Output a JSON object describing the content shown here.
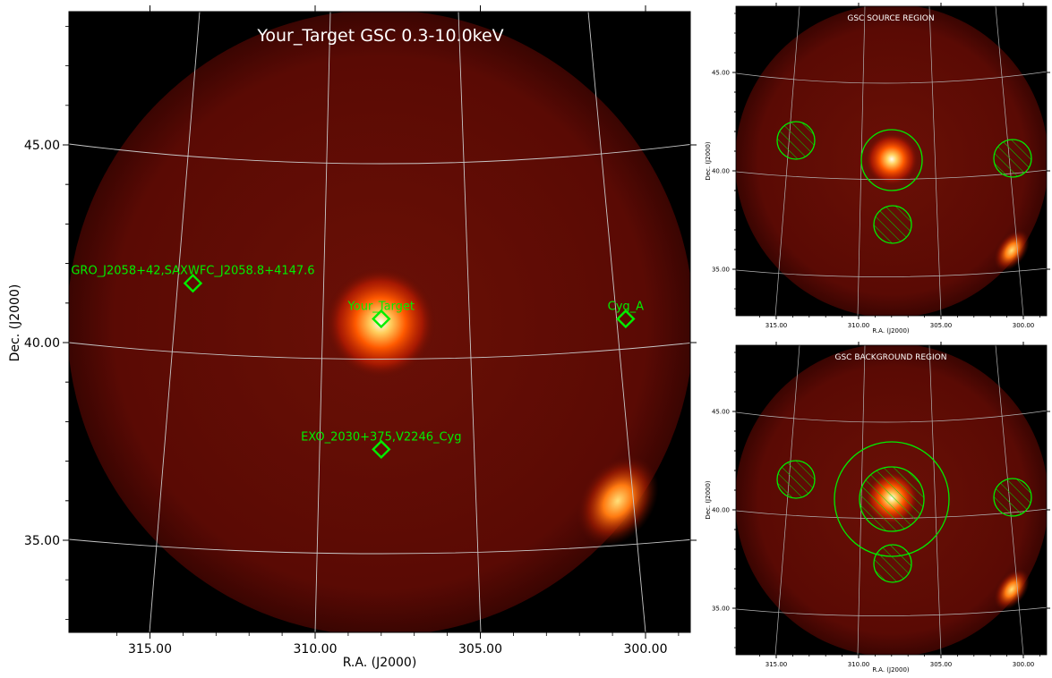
{
  "chart_data": [
    {
      "type": "heatmap",
      "title": "Your_Target GSC 0.3-10.0keV",
      "xlabel": "R.A. (J2000)",
      "ylabel": "Dec. (J2000)",
      "xticks": [
        "315.00",
        "310.00",
        "305.00",
        "300.00"
      ],
      "yticks": [
        "45.00",
        "40.00",
        "35.00"
      ],
      "colormap": "hot",
      "sources": [
        {
          "name": "GRO_J2058+42,SAXWFC_J2058.8+4147.6",
          "ra": 313.7,
          "dec": 41.5
        },
        {
          "name": "Your_Target",
          "ra": 308.0,
          "dec": 40.6
        },
        {
          "name": "Cyg_A",
          "ra": 300.6,
          "dec": 40.6
        },
        {
          "name": "EXO_2030+375,V2246_Cyg",
          "ra": 308.0,
          "dec": 37.3
        }
      ]
    },
    {
      "type": "heatmap",
      "title": "GSC SOURCE REGION",
      "xlabel": "R.A. (J2000)",
      "ylabel": "Dec. (J2000)",
      "xticks": [
        "315.00",
        "310.00",
        "305.00",
        "300.00"
      ],
      "yticks": [
        "45.00",
        "40.00",
        "35.00"
      ]
    },
    {
      "type": "heatmap",
      "title": "GSC BACKGROUND REGION",
      "xlabel": "R.A. (J2000)",
      "ylabel": "Dec. (J2000)",
      "xticks": [
        "315.00",
        "310.00",
        "305.00",
        "300.00"
      ],
      "yticks": [
        "45.00",
        "40.00",
        "35.00"
      ]
    }
  ],
  "colors": {
    "marker": "#00ee00",
    "grid": "#c8c8c8",
    "background": "#000000",
    "disk": "#5a0a04",
    "title_text": "#ffffff"
  }
}
